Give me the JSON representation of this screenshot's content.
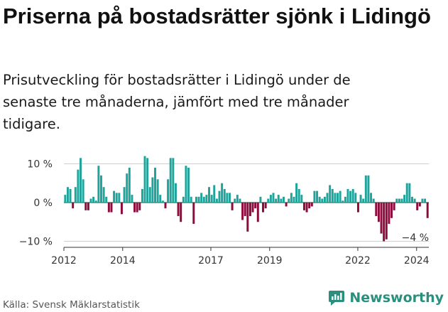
{
  "header": {
    "title": "Priserna på bostadsrätter sjönk i Lidingö",
    "subtitle": "Prisutveckling för bostadsrätter i Lidingö under de senaste tre månaderna, jämfört med tre månader tidigare."
  },
  "footer": {
    "source": "Källa: Svensk Mäklarstatistik",
    "brand": "Newsworthy"
  },
  "colors": {
    "positive": "#20a39a",
    "negative": "#8c0a3c",
    "brand": "#2b8f7e"
  },
  "chart_data": {
    "type": "bar",
    "title": "Priserna på bostadsrätter sjönk i Lidingö",
    "ylabel": "",
    "xlabel": "",
    "ylim": [
      -12,
      12
    ],
    "y_ticks": [
      10,
      0,
      -10
    ],
    "y_tick_labels": [
      "10 %",
      "0 %",
      "−10 %"
    ],
    "x_ticks": [
      2012,
      2014,
      2017,
      2019,
      2022,
      2024
    ],
    "x_tick_labels": [
      "2012",
      "2014",
      "2017",
      "2019",
      "2022",
      "2024"
    ],
    "start": "2012-01",
    "end": "2024-05",
    "annotation": {
      "label": "−4 %",
      "value": -4,
      "date": "2024-05"
    },
    "values": [
      2,
      4,
      3.5,
      -1.5,
      4,
      8.5,
      11.5,
      6,
      -2,
      -2,
      1,
      1.5,
      0.5,
      9.5,
      7,
      4,
      1.5,
      -2.5,
      -2.5,
      3,
      2.5,
      2.5,
      -3,
      4,
      7.5,
      9,
      2,
      -2.5,
      -2.5,
      -2,
      3.5,
      12,
      11.5,
      4,
      6.5,
      9,
      6,
      2,
      0.5,
      -1.5,
      6,
      11.5,
      11.5,
      5,
      -3.5,
      -5,
      1.5,
      9.5,
      9,
      1.5,
      -5.5,
      1.5,
      1.5,
      2.5,
      1.5,
      2,
      4,
      2,
      4.5,
      1,
      3,
      5,
      3.5,
      2.5,
      2.5,
      -2,
      1,
      2,
      1,
      -4.5,
      -3.5,
      -7.5,
      -3.5,
      -2.5,
      -1.5,
      -5,
      1.5,
      -2.5,
      -1.5,
      1,
      2,
      2.5,
      1,
      2,
      1,
      1.5,
      -1,
      1,
      2.5,
      1.5,
      5,
      3.5,
      2,
      -2,
      -2.5,
      -1.5,
      -1,
      3,
      3,
      1.5,
      1,
      1.5,
      2.5,
      4.5,
      3.5,
      2.5,
      2.5,
      3,
      0.5,
      1.5,
      3.5,
      3,
      3.5,
      2.5,
      -2.5,
      2,
      1,
      7,
      7,
      2.5,
      1,
      -3.5,
      -5,
      -8,
      -10,
      -9.5,
      -5.5,
      -4,
      -2,
      1,
      1,
      1,
      2,
      5,
      5,
      1.5,
      1,
      -2,
      -1,
      1,
      1,
      -4
    ]
  }
}
